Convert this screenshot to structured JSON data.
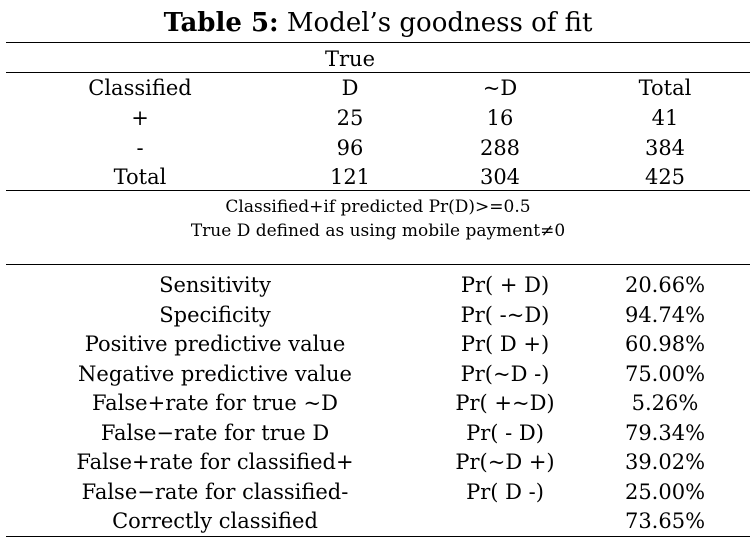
{
  "caption": {
    "label": "Table 5:",
    "title": "Model’s goodness of fit"
  },
  "classification": {
    "group_header": "True",
    "columns": [
      "Classified",
      "D",
      "~D",
      "Total"
    ],
    "rows": [
      [
        "+",
        "25",
        "16",
        "41"
      ],
      [
        "-",
        "96",
        "288",
        "384"
      ],
      [
        "Total",
        "121",
        "304",
        "425"
      ]
    ]
  },
  "notes": [
    "Classified+if predicted Pr(D)>=0.5",
    "True D defined as using mobile payment≠0"
  ],
  "statistics": [
    {
      "name": "Sensitivity",
      "formula": "Pr( + D)",
      "value": "20.66%"
    },
    {
      "name": "Specificity",
      "formula": "Pr( -~D)",
      "value": "94.74%"
    },
    {
      "name": "Positive predictive value",
      "formula": "Pr( D +)",
      "value": "60.98%"
    },
    {
      "name": "Negative predictive value",
      "formula": "Pr(~D -)",
      "value": "75.00%"
    },
    {
      "name": "False+rate for true ~D",
      "formula": "Pr( +~D)",
      "value": "5.26%"
    },
    {
      "name": "False−rate for true D",
      "formula": "Pr( - D)",
      "value": "79.34%"
    },
    {
      "name": "False+rate for classified+",
      "formula": "Pr(~D +)",
      "value": "39.02%"
    },
    {
      "name": "False−rate for classified-",
      "formula": "Pr( D -)",
      "value": "25.00%"
    },
    {
      "name": "Correctly classified",
      "formula": "",
      "value": "73.65%"
    }
  ]
}
